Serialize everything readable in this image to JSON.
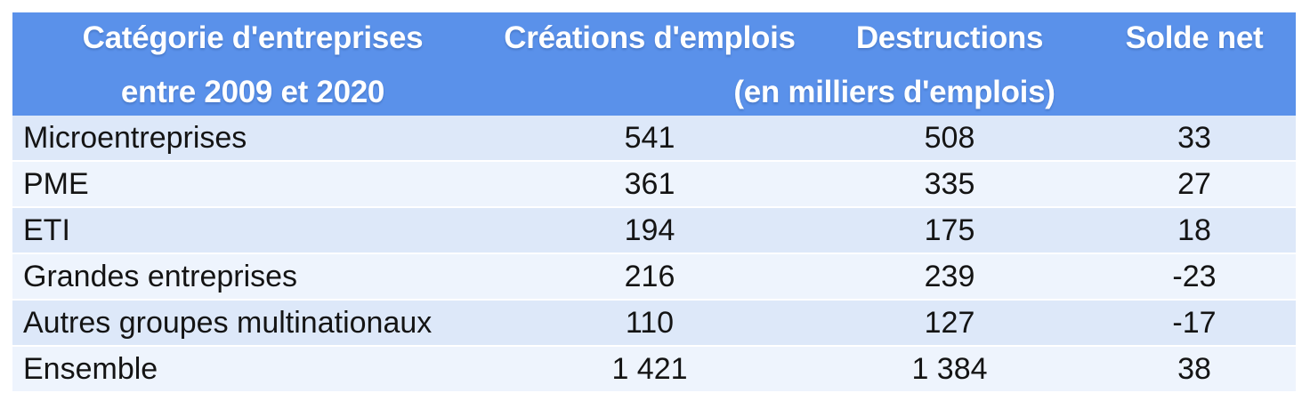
{
  "table": {
    "header": {
      "col1_line1": "Catégorie d'entreprises",
      "col1_line2": "entre 2009 et 2020",
      "col2": "Créations d'emplois",
      "col3": "Destructions",
      "col4": "Solde net",
      "subtitle": "(en milliers d'emplois)"
    },
    "rows": [
      {
        "category": "Microentreprises",
        "creations": "541",
        "destructions": "508",
        "solde": "33"
      },
      {
        "category": "PME",
        "creations": "361",
        "destructions": "335",
        "solde": "27"
      },
      {
        "category": "ETI",
        "creations": "194",
        "destructions": "175",
        "solde": "18"
      },
      {
        "category": "Grandes entreprises",
        "creations": "216",
        "destructions": "239",
        "solde": "-23"
      },
      {
        "category": "Autres groupes multinationaux",
        "creations": "110",
        "destructions": "127",
        "solde": "-17"
      },
      {
        "category": "Ensemble",
        "creations": "1 421",
        "destructions": "1 384",
        "solde": "38"
      }
    ],
    "colors": {
      "header_bg": "#5a91ea",
      "row_light": "#eef4fd",
      "row_shaded": "#dde8f9",
      "header_text": "#ffffff",
      "body_text": "#141414"
    }
  },
  "chart_data": {
    "type": "table",
    "title": "Catégorie d'entreprises entre 2009 et 2020",
    "unit_note": "(en milliers d'emplois)",
    "columns": [
      "Catégorie d'entreprises entre 2009 et 2020",
      "Créations d'emplois",
      "Destructions",
      "Solde net"
    ],
    "categories": [
      "Microentreprises",
      "PME",
      "ETI",
      "Grandes entreprises",
      "Autres groupes multinationaux",
      "Ensemble"
    ],
    "series": [
      {
        "name": "Créations d'emplois",
        "values": [
          541,
          361,
          194,
          216,
          110,
          1421
        ]
      },
      {
        "name": "Destructions",
        "values": [
          508,
          335,
          175,
          239,
          127,
          1384
        ]
      },
      {
        "name": "Solde net",
        "values": [
          33,
          27,
          18,
          -23,
          -17,
          38
        ]
      }
    ]
  }
}
